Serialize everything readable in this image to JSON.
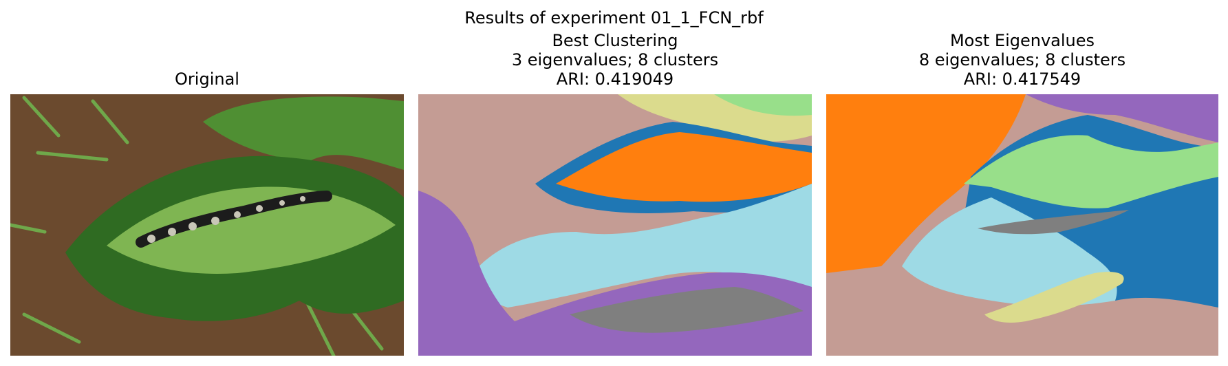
{
  "figure": {
    "suptitle": "Results of experiment 01_1_FCN_rbf"
  },
  "panels": [
    {
      "id": "original",
      "title_lines": [
        "Original"
      ]
    },
    {
      "id": "best",
      "title_lines": [
        "Best Clustering",
        "3 eigenvalues; 8 clusters",
        "ARI: 0.419049"
      ]
    },
    {
      "id": "most",
      "title_lines": [
        "Most Eigenvalues",
        "8 eigenvalues; 8 clusters",
        "ARI: 0.417549"
      ]
    }
  ],
  "cluster_colors": {
    "brown": "#c49c94",
    "orange": "#ff7f0e",
    "blue": "#1f77b4",
    "light_blue": "#9edae5",
    "purple": "#9467bd",
    "gray": "#7f7f7f",
    "light_green": "#98df8a",
    "olive_yellow": "#dbdb8d"
  },
  "photo_colors": {
    "soil": "#6b4a2e",
    "leaf_dark": "#2f6b22",
    "leaf_mid": "#4f8f33",
    "leaf_light": "#7fb552",
    "grass": "#6fa84a",
    "salamander_dark": "#1c1c1c",
    "salamander_light": "#c9c6b8"
  }
}
